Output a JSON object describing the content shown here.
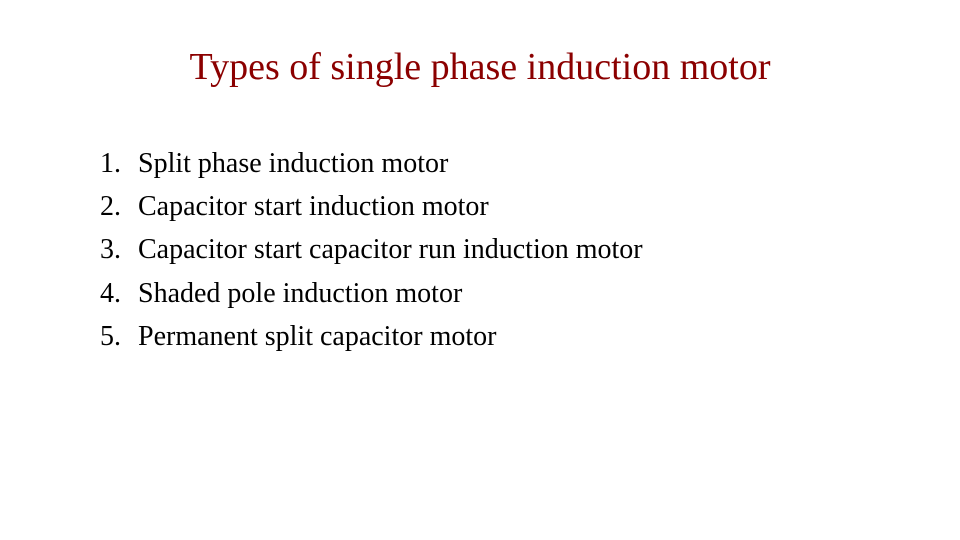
{
  "slide": {
    "title": "Types of single phase induction motor",
    "title_color": "#8b0000",
    "title_fontsize": 38,
    "background_color": "#ffffff",
    "body_color": "#000000",
    "body_fontsize": 28,
    "font_family": "Times New Roman",
    "items": [
      {
        "num": "1.",
        "text": "Split phase induction motor"
      },
      {
        "num": "2.",
        "text": "Capacitor start induction motor"
      },
      {
        "num": "3.",
        "text": "Capacitor start capacitor run induction motor"
      },
      {
        "num": "4.",
        "text": " Shaded pole induction motor"
      },
      {
        "num": "5.",
        "text": "Permanent split capacitor motor"
      }
    ]
  }
}
